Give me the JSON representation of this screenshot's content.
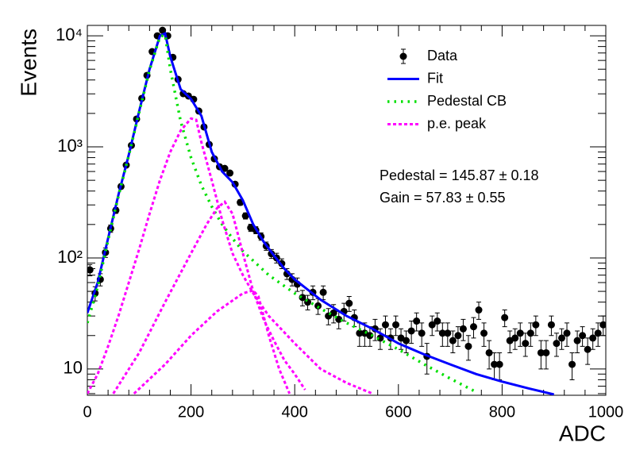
{
  "chart_data": {
    "type": "log-histogram-fit",
    "xlabel": "ADC",
    "ylabel": "Events",
    "xlim": [
      0,
      1000
    ],
    "xticks": [
      0,
      200,
      400,
      600,
      800,
      1000
    ],
    "ylim": [
      5.8,
      12400
    ],
    "yticks": [
      {
        "value": 10,
        "label": "10"
      },
      {
        "value": 100,
        "label": "10²"
      },
      {
        "value": 1000,
        "label": "10³"
      },
      {
        "value": 10000,
        "label": "10⁴"
      }
    ],
    "log_y": true,
    "legend": "top-right",
    "annotations": [
      "Pedestal = 145.87 ± 0.18",
      "Gain = 57.83 ± 0.55"
    ],
    "series": [
      {
        "name": "Data",
        "color": "#000000",
        "x": [
          5,
          15,
          25,
          35,
          45,
          55,
          65,
          75,
          85,
          95,
          105,
          115,
          125,
          135,
          145,
          155,
          165,
          175,
          185,
          195,
          205,
          215,
          225,
          235,
          245,
          255,
          265,
          275,
          285,
          295,
          305,
          315,
          325,
          335,
          345,
          355,
          365,
          375,
          385,
          395,
          405,
          415,
          425,
          435,
          445,
          455,
          465,
          475,
          485,
          495,
          505,
          515,
          525,
          535,
          545,
          555,
          565,
          575,
          585,
          595,
          605,
          615,
          625,
          635,
          645,
          655,
          665,
          675,
          685,
          695,
          705,
          715,
          725,
          735,
          745,
          755,
          765,
          775,
          785,
          795,
          805,
          815,
          825,
          835,
          845,
          855,
          865,
          875,
          885,
          895,
          905,
          915,
          925,
          935,
          945,
          955,
          965,
          975,
          985,
          995
        ],
        "values": [
          78,
          48,
          64,
          112,
          184,
          268,
          440,
          685,
          1030,
          1780,
          2730,
          4400,
          7200,
          10000,
          11200,
          10000,
          6400,
          4050,
          3010,
          2870,
          2680,
          2100,
          1510,
          1050,
          780,
          662,
          640,
          581,
          461,
          316,
          239,
          187,
          178,
          156,
          128,
          109,
          100,
          89,
          72,
          64,
          58,
          44,
          40,
          49,
          37,
          49,
          30,
          32,
          28,
          33,
          39,
          29,
          21,
          21,
          20,
          23,
          19,
          25,
          19,
          25,
          19,
          18,
          22,
          27,
          21,
          13,
          25,
          27,
          21,
          21,
          18,
          20,
          23,
          16,
          24,
          34,
          21,
          14,
          11,
          11,
          29,
          18,
          19,
          21,
          17,
          21,
          25,
          14,
          14,
          25,
          17,
          19,
          21,
          11,
          18,
          20,
          15,
          19,
          21,
          25
        ],
        "errors": [
          9,
          7,
          8,
          11,
          14,
          16,
          21,
          26,
          32,
          42,
          52,
          66,
          85,
          100,
          106,
          100,
          80,
          64,
          55,
          54,
          52,
          46,
          39,
          32,
          28,
          26,
          25,
          24,
          21,
          18,
          15,
          14,
          13,
          12,
          11,
          10,
          10,
          9,
          8,
          8,
          8,
          7,
          6,
          7,
          6,
          7,
          5,
          6,
          5,
          6,
          6,
          5,
          5,
          5,
          4,
          5,
          4,
          5,
          4,
          5,
          4,
          4,
          5,
          5,
          5,
          4,
          5,
          5,
          5,
          5,
          4,
          4,
          5,
          4,
          5,
          6,
          5,
          4,
          3,
          3,
          5,
          4,
          4,
          5,
          4,
          5,
          5,
          4,
          4,
          5,
          4,
          4,
          5,
          3,
          4,
          4,
          4,
          4,
          5,
          5
        ]
      },
      {
        "name": "Fit",
        "color": "#0000ff",
        "pieces": [
          {
            "x": [
              0,
              20,
              40,
              60,
              80,
              100,
              120,
              140,
              150,
              160,
              180,
              200,
              220,
              240,
              260,
              280,
              300,
              320,
              340,
              360,
              380,
              400,
              450,
              500,
              550,
              600,
              650,
              700,
              750,
              800,
              850,
              900
            ],
            "values": [
              32,
              60,
              150,
              370,
              850,
              2100,
              5000,
              10000,
              10500,
              6500,
              3300,
              2700,
              1900,
              900,
              600,
              480,
              330,
              200,
              140,
              105,
              80,
              64,
              42,
              30,
              23,
              17,
              13.5,
              11,
              9,
              7.7,
              6.7,
              5.9
            ]
          }
        ]
      },
      {
        "name": "Pedestal CB",
        "color": "#00e000",
        "pieces": [
          {
            "x": [
              0,
              20,
              40,
              60,
              80,
              100,
              120,
              140,
              150,
              160,
              180,
              200,
              220,
              240,
              260,
              280,
              300,
              350,
              400,
              450,
              500,
              550,
              600,
              650,
              700,
              750
            ],
            "values": [
              26,
              55,
              145,
              360,
              840,
              2050,
              4900,
              9800,
              10200,
              5000,
              1700,
              800,
              450,
              290,
              200,
              150,
              115,
              70,
              48,
              35,
              26,
              20,
              15,
              11,
              8.2,
              6.2
            ]
          }
        ]
      },
      {
        "name": "p.e. peak",
        "color": "#ff00ff",
        "pieces": [
          {
            "x": [
              0,
              20,
              40,
              60,
              80,
              100,
              120,
              140,
              160,
              180,
              200,
              210,
              220,
              240,
              260,
              280,
              300,
              320,
              350,
              400,
              450,
              500,
              550
            ],
            "values": [
              6,
              9,
              16,
              30,
              60,
              120,
              250,
              500,
              900,
              1400,
              1800,
              1750,
              1100,
              500,
              220,
              110,
              70,
              48,
              30,
              17,
              10,
              7.5,
              6
            ]
          },
          {
            "x": [
              50,
              100,
              150,
              200,
              230,
              250,
              265,
              280,
              300,
              320,
              340,
              360,
              380,
              400,
              420
            ],
            "values": [
              6,
              14,
              40,
              110,
              200,
              280,
              320,
              250,
              110,
              50,
              28,
              18,
              12,
              9,
              6.5
            ]
          },
          {
            "x": [
              90,
              150,
              200,
              250,
              300,
              320,
              330,
              350,
              370,
              390
            ],
            "values": [
              6,
              11,
              20,
              33,
              48,
              51,
              45,
              20,
              10,
              6
            ]
          }
        ]
      }
    ]
  }
}
